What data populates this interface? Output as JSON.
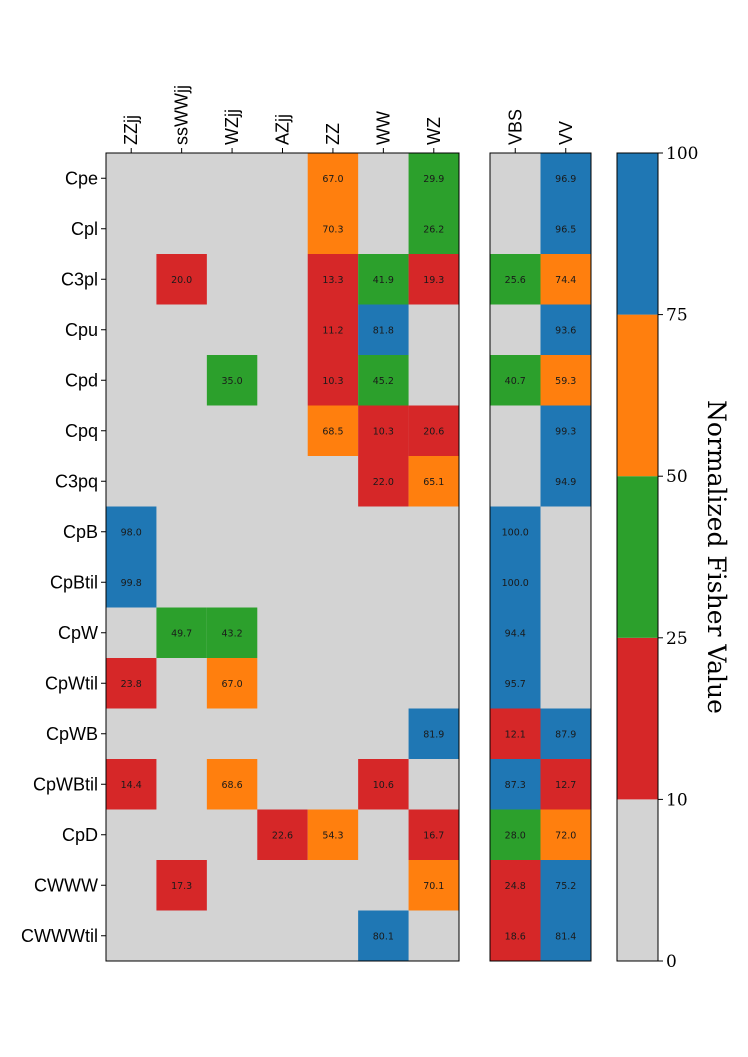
{
  "chart_data": {
    "type": "heatmap",
    "rows": [
      "Cpe",
      "Cpl",
      "C3pl",
      "Cpu",
      "Cpd",
      "Cpq",
      "C3pq",
      "CpB",
      "CpBtil",
      "CpW",
      "CpWtil",
      "CpWB",
      "CpWBtil",
      "CpD",
      "CWWW",
      "CWWWtil"
    ],
    "panels": [
      {
        "columns": [
          "ZZjj",
          "ssWWjj",
          "WZjj",
          "AZjj",
          "ZZ",
          "WW",
          "WZ"
        ],
        "values": [
          [
            null,
            null,
            null,
            null,
            67.0,
            null,
            29.9
          ],
          [
            null,
            null,
            null,
            null,
            70.3,
            null,
            26.2
          ],
          [
            null,
            20.0,
            null,
            null,
            13.3,
            41.9,
            19.3
          ],
          [
            null,
            null,
            null,
            null,
            11.2,
            81.8,
            null
          ],
          [
            null,
            null,
            35.0,
            null,
            10.3,
            45.2,
            null
          ],
          [
            null,
            null,
            null,
            null,
            68.5,
            10.3,
            20.6
          ],
          [
            null,
            null,
            null,
            null,
            null,
            22.0,
            65.1
          ],
          [
            98.0,
            null,
            null,
            null,
            null,
            null,
            null
          ],
          [
            99.8,
            null,
            null,
            null,
            null,
            null,
            null
          ],
          [
            null,
            49.7,
            43.2,
            null,
            null,
            null,
            null
          ],
          [
            23.8,
            null,
            67.0,
            null,
            null,
            null,
            null
          ],
          [
            null,
            null,
            null,
            null,
            null,
            null,
            81.9
          ],
          [
            14.4,
            null,
            68.6,
            null,
            null,
            10.6,
            null
          ],
          [
            null,
            null,
            null,
            22.6,
            54.3,
            null,
            16.7
          ],
          [
            null,
            17.3,
            null,
            null,
            null,
            null,
            70.1
          ],
          [
            null,
            null,
            null,
            null,
            null,
            80.1,
            null
          ]
        ]
      },
      {
        "columns": [
          "VBS",
          "VV"
        ],
        "values": [
          [
            null,
            96.9
          ],
          [
            null,
            96.5
          ],
          [
            25.6,
            74.4
          ],
          [
            null,
            93.6
          ],
          [
            40.7,
            59.3
          ],
          [
            null,
            99.3
          ],
          [
            null,
            94.9
          ],
          [
            100.0,
            null
          ],
          [
            100.0,
            null
          ],
          [
            94.4,
            null
          ],
          [
            95.7,
            null
          ],
          [
            12.1,
            87.9
          ],
          [
            87.3,
            12.7
          ],
          [
            28.0,
            72.0
          ],
          [
            24.8,
            75.2
          ],
          [
            18.6,
            81.4
          ]
        ]
      }
    ],
    "colorbar": {
      "label": "Normalized Fisher Value",
      "ticks": [
        0,
        10,
        25,
        50,
        75,
        100
      ],
      "bins": [
        {
          "from": 0,
          "to": 10,
          "color": "#d3d3d3"
        },
        {
          "from": 10,
          "to": 25,
          "color": "#d62728"
        },
        {
          "from": 25,
          "to": 50,
          "color": "#2ca02c"
        },
        {
          "from": 50,
          "to": 75,
          "color": "#ff7f0e"
        },
        {
          "from": 75,
          "to": 100,
          "color": "#1f77b4"
        }
      ]
    }
  }
}
